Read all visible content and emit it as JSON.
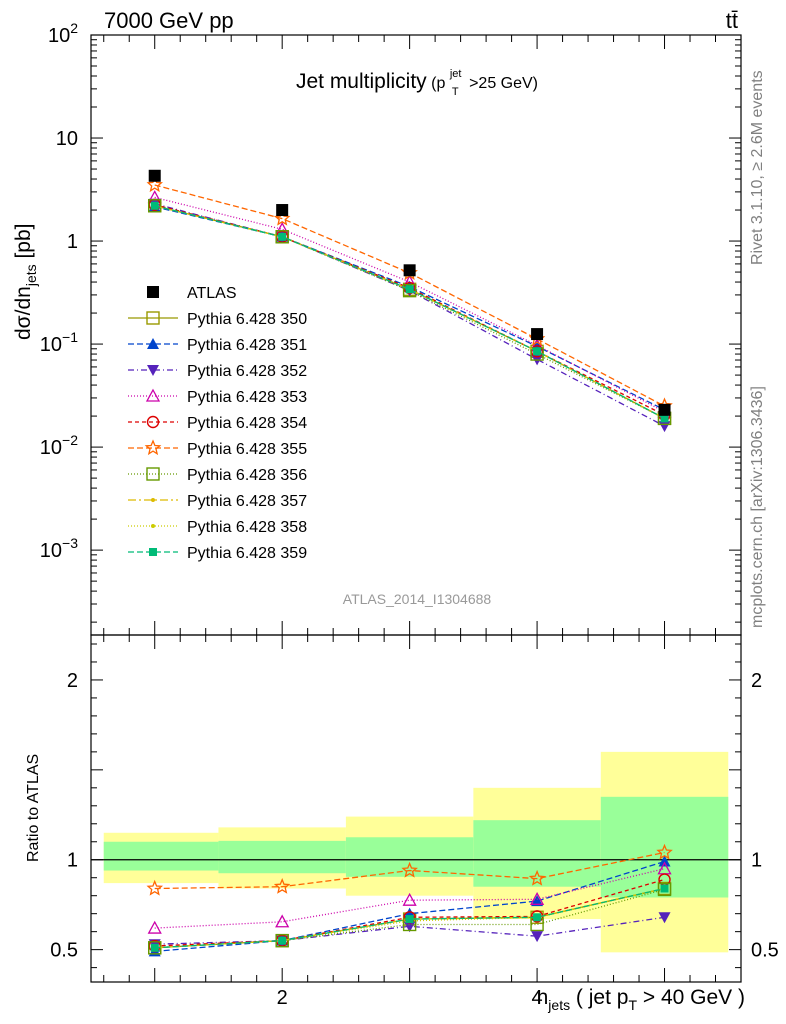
{
  "header": {
    "energy_label": "7000 GeV pp",
    "process_label": "tt̄"
  },
  "side_labels": {
    "rivet": "Rivet 3.1.10, ≥ 2.6M events",
    "mcplots": "mcplots.cern.ch [arXiv:1306.3436]"
  },
  "chart_title": {
    "main": "Jet multiplicity",
    "cond_open": "(p",
    "cond_sup": "jet",
    "cond_sub": "T",
    "cond_rest": ">25 GeV)"
  },
  "watermark": "ATLAS_2014_I1304688",
  "axes": {
    "main_ylabel": {
      "p1": "dσ/dn",
      "sub": "jets",
      "p2": " [pb]"
    },
    "ratio_ylabel": "Ratio to ATLAS",
    "xlabel": {
      "p1": "n",
      "sub1": "jets",
      "p2": " ( jet p",
      "sub2": "T",
      "p3": " > 40 GeV )"
    },
    "main_yticks": [
      {
        "base": "10",
        "exp": "2",
        "value": 100
      },
      {
        "base": "10",
        "exp": "",
        "value": 10
      },
      {
        "base": "1",
        "exp": "",
        "value": 1
      },
      {
        "base": "10",
        "exp": "−1",
        "value": 0.1
      },
      {
        "base": "10",
        "exp": "−2",
        "value": 0.01
      },
      {
        "base": "10",
        "exp": "−3",
        "value": 0.001
      }
    ],
    "ratio_yticks": [
      {
        "label": "2",
        "value": 2
      },
      {
        "label": "1",
        "value": 1
      },
      {
        "label": "0.5",
        "value": 0.5
      }
    ],
    "xticks": [
      {
        "label": "2",
        "value": 2
      },
      {
        "label": "4",
        "value": 4
      }
    ]
  },
  "chart_data": {
    "type": "line",
    "x": [
      1,
      2,
      3,
      4,
      5
    ],
    "xlim": [
      0.5,
      5.6
    ],
    "main_ylim": [
      0.00015,
      100
    ],
    "main_yscale": "log",
    "ratio_ylim": [
      0.32,
      2.25
    ],
    "ratio_ref": 1,
    "legend_position": "middle-left",
    "reference": {
      "name": "ATLAS",
      "values": [
        4.3,
        2.0,
        0.52,
        0.125,
        0.023
      ],
      "color": "#000000",
      "marker": "square-filled"
    },
    "uncertainty_bands": {
      "inner_color": "#99ff99",
      "outer_color": "#ffff99",
      "bins": [
        {
          "xlo": 0.6,
          "xhi": 1.5,
          "inner": [
            0.94,
            1.1
          ],
          "outer": [
            0.87,
            1.15
          ]
        },
        {
          "xlo": 1.5,
          "xhi": 2.5,
          "inner": [
            0.925,
            1.105
          ],
          "outer": [
            0.84,
            1.18
          ]
        },
        {
          "xlo": 2.5,
          "xhi": 3.5,
          "inner": [
            0.905,
            1.125
          ],
          "outer": [
            0.8,
            1.24
          ]
        },
        {
          "xlo": 3.5,
          "xhi": 4.5,
          "inner": [
            0.85,
            1.22
          ],
          "outer": [
            0.67,
            1.4
          ]
        },
        {
          "xlo": 4.5,
          "xhi": 5.5,
          "inner": [
            0.79,
            1.35
          ],
          "outer": [
            0.485,
            1.6
          ]
        }
      ]
    },
    "series": [
      {
        "name": "Pythia 6.428 350",
        "color": "#999900",
        "dash": "",
        "marker": "square-open",
        "values": [
          2.2,
          1.1,
          0.34,
          0.085,
          0.019
        ],
        "ratio": [
          0.51,
          0.55,
          0.67,
          0.68,
          0.84
        ]
      },
      {
        "name": "Pythia 6.428 351",
        "color": "#0044cc",
        "dash": "6,3",
        "marker": "triangle-up-filled",
        "values": [
          2.15,
          1.1,
          0.36,
          0.095,
          0.023
        ],
        "ratio": [
          0.49,
          0.55,
          0.7,
          0.77,
          0.99
        ]
      },
      {
        "name": "Pythia 6.428 352",
        "color": "#5522bb",
        "dash": "6,3,1,3",
        "marker": "triangle-down-filled",
        "values": [
          2.3,
          1.1,
          0.33,
          0.071,
          0.016
        ],
        "ratio": [
          0.53,
          0.55,
          0.63,
          0.575,
          0.68
        ]
      },
      {
        "name": "Pythia 6.428 353",
        "color": "#cc00aa",
        "dash": "1,2",
        "marker": "triangle-up-open",
        "values": [
          2.65,
          1.3,
          0.4,
          0.097,
          0.022
        ],
        "ratio": [
          0.62,
          0.655,
          0.775,
          0.78,
          0.95
        ]
      },
      {
        "name": "Pythia 6.428 354",
        "color": "#dd0000",
        "dash": "4,3",
        "marker": "circle-open",
        "values": [
          2.25,
          1.1,
          0.35,
          0.085,
          0.0205
        ],
        "ratio": [
          0.52,
          0.55,
          0.68,
          0.685,
          0.89
        ]
      },
      {
        "name": "Pythia 6.428 355",
        "color": "#ff6600",
        "dash": "6,3",
        "marker": "star-open",
        "values": [
          3.5,
          1.65,
          0.49,
          0.112,
          0.025
        ],
        "ratio": [
          0.84,
          0.85,
          0.94,
          0.895,
          1.04
        ]
      },
      {
        "name": "Pythia 6.428 356",
        "color": "#669900",
        "dash": "1,2",
        "marker": "square-open",
        "values": [
          2.2,
          1.1,
          0.33,
          0.08,
          0.019
        ],
        "ratio": [
          0.51,
          0.55,
          0.64,
          0.64,
          0.835
        ]
      },
      {
        "name": "Pythia 6.428 357",
        "color": "#ddbb00",
        "dash": "8,3,2,3",
        "marker": "dot",
        "values": [
          2.2,
          1.1,
          0.34,
          0.085,
          0.019
        ],
        "ratio": [
          0.51,
          0.55,
          0.67,
          0.68,
          0.84
        ]
      },
      {
        "name": "Pythia 6.428 358",
        "color": "#cccc00",
        "dash": "1,2",
        "marker": "dot",
        "values": [
          2.2,
          1.1,
          0.34,
          0.085,
          0.019
        ],
        "ratio": [
          0.51,
          0.55,
          0.66,
          0.68,
          0.84
        ]
      },
      {
        "name": "Pythia 6.428 359",
        "color": "#00bb77",
        "dash": "6,3",
        "marker": "square-filled-small",
        "values": [
          2.2,
          1.1,
          0.34,
          0.085,
          0.019
        ],
        "ratio": [
          0.51,
          0.55,
          0.67,
          0.68,
          0.84
        ]
      }
    ]
  }
}
